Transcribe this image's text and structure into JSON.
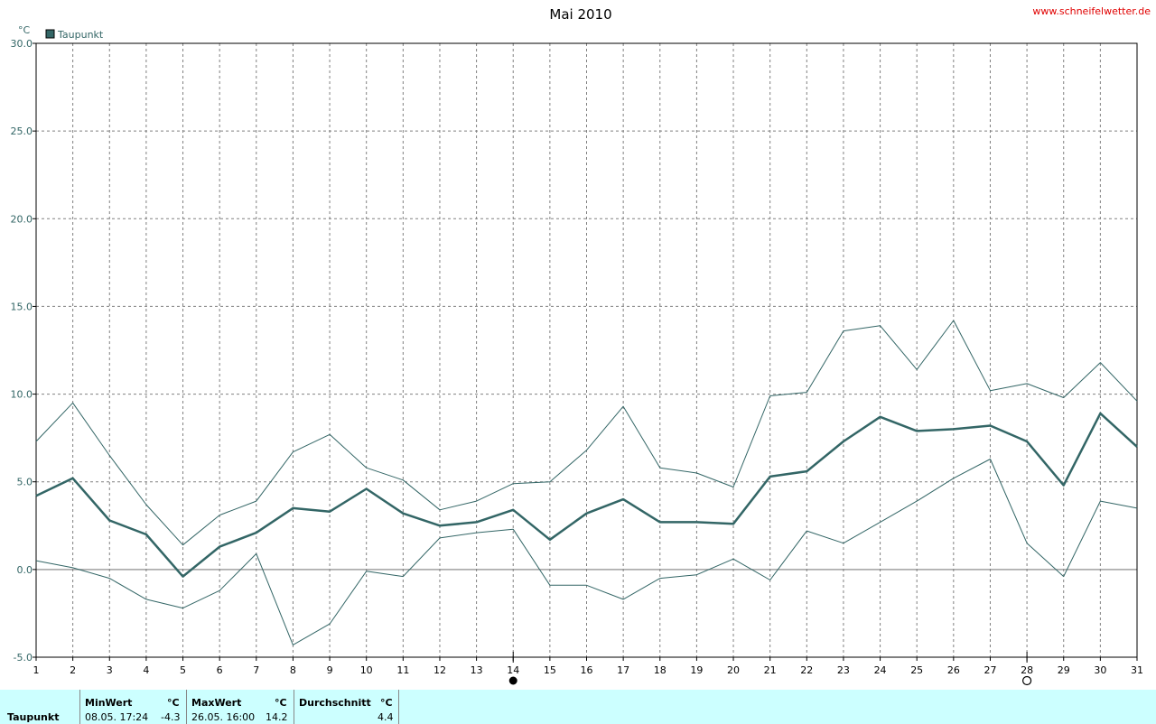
{
  "site_label": "www.schneifelwetter.de",
  "colors": {
    "series": "#336666",
    "grid": "#808080",
    "axis": "#000000",
    "footer_bg": "#ccffff",
    "site": "#e00000"
  },
  "moon_phase_icons": [
    "full-moon-icon",
    "new-moon-icon"
  ],
  "chart_data": {
    "type": "line",
    "title": "Mai 2010",
    "ylabel": "°C",
    "legend": "Taupunkt",
    "legend_position": "top-left",
    "grid": true,
    "ylim": [
      -5,
      30
    ],
    "yticks": [
      "-5.0",
      "0.0",
      "5.0",
      "10.0",
      "15.0",
      "20.0",
      "25.0",
      "30.0"
    ],
    "x": [
      "1",
      "2",
      "3",
      "4",
      "5",
      "6",
      "7",
      "8",
      "9",
      "10",
      "11",
      "12",
      "13",
      "14",
      "15",
      "16",
      "17",
      "18",
      "19",
      "20",
      "21",
      "22",
      "23",
      "24",
      "25",
      "26",
      "27",
      "28",
      "29",
      "30",
      "31"
    ],
    "series": [
      {
        "role": "max",
        "values": [
          7.3,
          9.5,
          6.5,
          3.7,
          1.4,
          3.1,
          3.9,
          6.7,
          7.7,
          5.8,
          5.1,
          3.4,
          3.9,
          4.9,
          5.0,
          6.8,
          9.3,
          5.8,
          5.5,
          4.7,
          9.9,
          10.1,
          13.6,
          13.9,
          11.4,
          14.2,
          10.2,
          10.6,
          9.8,
          11.8,
          9.6
        ]
      },
      {
        "role": "mean",
        "values": [
          4.2,
          5.2,
          2.8,
          2.0,
          -0.4,
          1.3,
          2.1,
          3.5,
          3.3,
          4.6,
          3.2,
          2.5,
          2.7,
          3.4,
          1.7,
          3.2,
          4.0,
          2.7,
          2.7,
          2.6,
          5.3,
          5.6,
          7.3,
          8.7,
          7.9,
          8.0,
          8.2,
          7.3,
          4.8,
          8.9,
          7.0
        ]
      },
      {
        "role": "min",
        "values": [
          0.5,
          0.1,
          -0.5,
          -1.7,
          -2.2,
          -1.2,
          0.9,
          -4.3,
          -3.1,
          -0.1,
          -0.4,
          1.8,
          2.1,
          2.3,
          -0.9,
          -0.9,
          -1.7,
          -0.5,
          -0.3,
          0.6,
          -0.6,
          2.2,
          1.5,
          2.7,
          3.9,
          5.2,
          6.3,
          1.5,
          -0.4,
          3.9,
          3.5
        ]
      }
    ]
  },
  "footer": {
    "row_label": "Taupunkt",
    "min": {
      "header": "MinWert",
      "unit": "°C",
      "datetime": "08.05.  17:24",
      "value": "-4.3"
    },
    "max": {
      "header": "MaxWert",
      "unit": "°C",
      "datetime": "26.05.  16:00",
      "value": "14.2"
    },
    "avg": {
      "header": "Durchschnitt",
      "unit": "°C",
      "value": "4.4"
    }
  }
}
